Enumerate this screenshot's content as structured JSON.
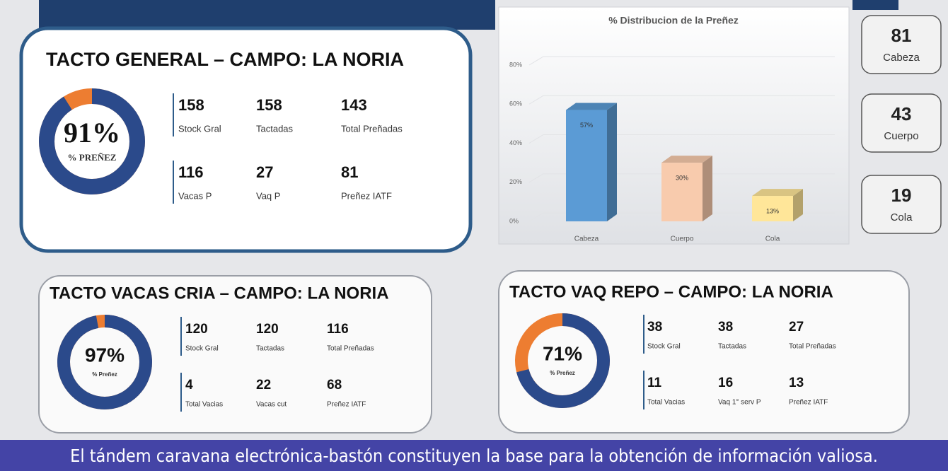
{
  "chart_data": {
    "type": "bar",
    "title": "% Distribucion de la Preñez",
    "categories": [
      "Cabeza",
      "Cuerpo",
      "Cola"
    ],
    "values": [
      57,
      30,
      13
    ],
    "value_labels": [
      "57%",
      "30%",
      "13%"
    ],
    "colors": [
      "#5b9bd5",
      "#f8cbad",
      "#ffe699"
    ],
    "ylim": [
      0,
      80
    ],
    "yticks": [
      {
        "value": 0,
        "label": "0%"
      },
      {
        "value": 20,
        "label": "20%"
      },
      {
        "value": 40,
        "label": "40%"
      },
      {
        "value": 60,
        "label": "60%"
      },
      {
        "value": 80,
        "label": "80%"
      }
    ],
    "grid": true
  },
  "side_boxes": [
    {
      "value": 81,
      "label": "Cabeza"
    },
    {
      "value": 43,
      "label": "Cuerpo"
    },
    {
      "value": 19,
      "label": "Cola"
    }
  ],
  "panels": [
    {
      "title": "TACTO GENERAL  –  CAMPO: LA NORIA",
      "percent": 91,
      "percent_label": "91%",
      "percent_caption": "% PREÑEZ",
      "stats": [
        {
          "value": 158,
          "label": "Stock Gral"
        },
        {
          "value": 158,
          "label": "Tactadas"
        },
        {
          "value": 143,
          "label": "Total Preñadas"
        },
        {
          "value": 116,
          "label": "Vacas P"
        },
        {
          "value": 27,
          "label": "Vaq P"
        },
        {
          "value": 81,
          "label": "Preñez IATF"
        }
      ]
    },
    {
      "title": "TACTO VACAS CRIA  –  CAMPO: LA NORIA",
      "percent": 97,
      "percent_label": "97%",
      "percent_caption": "% Preñez",
      "stats": [
        {
          "value": 120,
          "label": "Stock Gral"
        },
        {
          "value": 120,
          "label": "Tactadas"
        },
        {
          "value": 116,
          "label": "Total Preñadas"
        },
        {
          "value": 4,
          "label": "Total Vacias"
        },
        {
          "value": 22,
          "label": "Vacas cut"
        },
        {
          "value": 68,
          "label": "Preñez IATF"
        }
      ]
    },
    {
      "title": "TACTO VAQ REPO  –  CAMPO: LA NORIA",
      "percent": 71,
      "percent_label": "71%",
      "percent_caption": "% Preñez",
      "stats": [
        {
          "value": 38,
          "label": "Stock Gral"
        },
        {
          "value": 38,
          "label": "Tactadas"
        },
        {
          "value": 27,
          "label": "Total Preñadas"
        },
        {
          "value": 11,
          "label": "Total Vacias"
        },
        {
          "value": 16,
          "label": "Vaq 1° serv P"
        },
        {
          "value": 13,
          "label": "Preñez IATF"
        }
      ]
    }
  ],
  "caption": "El tándem caravana electrónica-bastón constituyen la base para la obtención de información valiosa."
}
